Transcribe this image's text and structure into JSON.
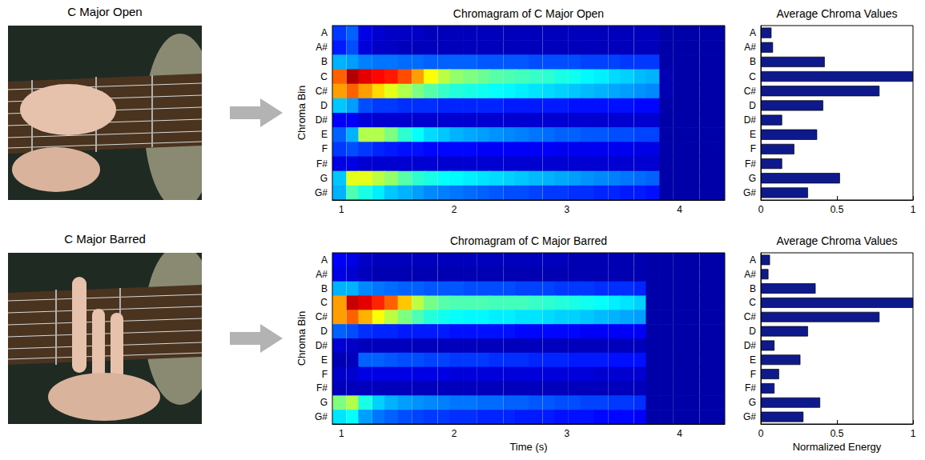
{
  "photos": [
    {
      "title": "C Major Open"
    },
    {
      "title": "C Major Barred"
    }
  ],
  "chart_data": [
    {
      "type": "heatmap",
      "title": "Chromagram of C Major Open",
      "ylabel": "Chroma Bin",
      "x": [
        0.98,
        1.1,
        1.21,
        1.33,
        1.44,
        1.56,
        1.68,
        1.79,
        1.91,
        2.02,
        2.14,
        2.26,
        2.37,
        2.49,
        2.6,
        2.72,
        2.84,
        2.95,
        3.07,
        3.18,
        3.3,
        3.42,
        3.53,
        3.65,
        3.76,
        3.88,
        4.0,
        4.11,
        4.23,
        4.34
      ],
      "categories": [
        "A",
        "A#",
        "B",
        "C",
        "C#",
        "D",
        "D#",
        "E",
        "F",
        "F#",
        "G",
        "G#"
      ],
      "xlim": [
        0.92,
        4.4
      ],
      "xticks": [
        1,
        2,
        3,
        4
      ],
      "zlim": [
        0,
        1
      ],
      "z": [
        [
          0.18,
          0.22,
          0.1,
          0.08,
          0.07,
          0.07,
          0.07,
          0.06,
          0.06,
          0.06,
          0.06,
          0.06,
          0.06,
          0.06,
          0.06,
          0.06,
          0.06,
          0.06,
          0.06,
          0.06,
          0.06,
          0.06,
          0.06,
          0.06,
          0.06,
          0.04,
          0.04,
          0.04,
          0.04,
          0.04
        ],
        [
          0.15,
          0.2,
          0.09,
          0.07,
          0.07,
          0.06,
          0.06,
          0.06,
          0.06,
          0.06,
          0.06,
          0.06,
          0.06,
          0.06,
          0.06,
          0.06,
          0.06,
          0.06,
          0.06,
          0.06,
          0.06,
          0.06,
          0.06,
          0.06,
          0.06,
          0.04,
          0.04,
          0.04,
          0.04,
          0.04
        ],
        [
          0.3,
          0.28,
          0.25,
          0.24,
          0.24,
          0.23,
          0.23,
          0.22,
          0.22,
          0.22,
          0.22,
          0.21,
          0.21,
          0.21,
          0.21,
          0.2,
          0.2,
          0.2,
          0.2,
          0.19,
          0.19,
          0.19,
          0.18,
          0.18,
          0.18,
          0.04,
          0.04,
          0.04,
          0.04,
          0.04
        ],
        [
          0.78,
          0.95,
          0.9,
          0.87,
          0.85,
          0.8,
          0.72,
          0.62,
          0.56,
          0.52,
          0.5,
          0.48,
          0.46,
          0.45,
          0.44,
          0.43,
          0.42,
          0.4,
          0.39,
          0.37,
          0.36,
          0.34,
          0.33,
          0.31,
          0.3,
          0.05,
          0.04,
          0.04,
          0.04,
          0.04
        ],
        [
          0.72,
          0.78,
          0.72,
          0.66,
          0.6,
          0.55,
          0.5,
          0.46,
          0.43,
          0.41,
          0.4,
          0.39,
          0.38,
          0.37,
          0.36,
          0.35,
          0.34,
          0.33,
          0.32,
          0.31,
          0.3,
          0.29,
          0.28,
          0.27,
          0.26,
          0.05,
          0.04,
          0.04,
          0.04,
          0.04
        ],
        [
          0.32,
          0.28,
          0.2,
          0.18,
          0.18,
          0.17,
          0.17,
          0.17,
          0.16,
          0.16,
          0.16,
          0.16,
          0.16,
          0.15,
          0.15,
          0.15,
          0.15,
          0.15,
          0.14,
          0.14,
          0.14,
          0.14,
          0.14,
          0.13,
          0.13,
          0.04,
          0.04,
          0.04,
          0.04,
          0.04
        ],
        [
          0.12,
          0.12,
          0.09,
          0.08,
          0.08,
          0.08,
          0.08,
          0.08,
          0.08,
          0.08,
          0.08,
          0.08,
          0.08,
          0.08,
          0.08,
          0.08,
          0.08,
          0.08,
          0.08,
          0.08,
          0.08,
          0.08,
          0.08,
          0.08,
          0.08,
          0.04,
          0.04,
          0.04,
          0.04,
          0.04
        ],
        [
          0.22,
          0.3,
          0.55,
          0.55,
          0.5,
          0.42,
          0.38,
          0.34,
          0.32,
          0.3,
          0.29,
          0.28,
          0.27,
          0.26,
          0.25,
          0.24,
          0.23,
          0.22,
          0.22,
          0.21,
          0.21,
          0.2,
          0.2,
          0.19,
          0.19,
          0.04,
          0.04,
          0.04,
          0.04,
          0.04
        ],
        [
          0.18,
          0.2,
          0.18,
          0.16,
          0.15,
          0.14,
          0.14,
          0.13,
          0.13,
          0.13,
          0.13,
          0.12,
          0.12,
          0.12,
          0.12,
          0.12,
          0.12,
          0.11,
          0.11,
          0.11,
          0.11,
          0.11,
          0.11,
          0.1,
          0.1,
          0.04,
          0.04,
          0.04,
          0.04,
          0.04
        ],
        [
          0.1,
          0.1,
          0.08,
          0.08,
          0.08,
          0.08,
          0.08,
          0.08,
          0.08,
          0.08,
          0.08,
          0.08,
          0.08,
          0.08,
          0.08,
          0.08,
          0.08,
          0.08,
          0.08,
          0.08,
          0.08,
          0.08,
          0.08,
          0.08,
          0.08,
          0.04,
          0.04,
          0.04,
          0.04,
          0.04
        ],
        [
          0.32,
          0.6,
          0.6,
          0.56,
          0.52,
          0.46,
          0.42,
          0.4,
          0.38,
          0.37,
          0.36,
          0.35,
          0.34,
          0.33,
          0.32,
          0.31,
          0.3,
          0.29,
          0.28,
          0.27,
          0.26,
          0.25,
          0.24,
          0.23,
          0.22,
          0.04,
          0.04,
          0.04,
          0.04,
          0.04
        ],
        [
          0.3,
          0.45,
          0.4,
          0.36,
          0.32,
          0.3,
          0.28,
          0.26,
          0.25,
          0.24,
          0.23,
          0.22,
          0.21,
          0.2,
          0.2,
          0.19,
          0.18,
          0.18,
          0.17,
          0.17,
          0.16,
          0.16,
          0.15,
          0.15,
          0.14,
          0.04,
          0.04,
          0.04,
          0.04,
          0.04
        ]
      ]
    },
    {
      "type": "bar",
      "orientation": "horizontal",
      "title": "Average Chroma Values",
      "categories": [
        "A",
        "A#",
        "B",
        "C",
        "C#",
        "D",
        "D#",
        "E",
        "F",
        "F#",
        "G",
        "G#"
      ],
      "values": [
        0.07,
        0.08,
        0.42,
        1.0,
        0.78,
        0.41,
        0.14,
        0.37,
        0.22,
        0.14,
        0.52,
        0.31
      ],
      "color": "#0e1a8c",
      "xlim": [
        0,
        1
      ],
      "xticks": [
        0,
        0.5,
        1
      ]
    },
    {
      "type": "heatmap",
      "title": "Chromagram of C Major Barred",
      "xlabel": "Time (s)",
      "ylabel": "Chroma Bin",
      "x": [
        0.98,
        1.1,
        1.21,
        1.33,
        1.44,
        1.56,
        1.68,
        1.79,
        1.91,
        2.02,
        2.14,
        2.26,
        2.37,
        2.49,
        2.6,
        2.72,
        2.84,
        2.95,
        3.07,
        3.18,
        3.3,
        3.42,
        3.53,
        3.65,
        3.76,
        3.88,
        4.0,
        4.11,
        4.23,
        4.34
      ],
      "categories": [
        "A",
        "A#",
        "B",
        "C",
        "C#",
        "D",
        "D#",
        "E",
        "F",
        "F#",
        "G",
        "G#"
      ],
      "xlim": [
        0.92,
        4.4
      ],
      "xticks": [
        1,
        2,
        3,
        4
      ],
      "zlim": [
        0,
        1
      ],
      "z": [
        [
          0.12,
          0.1,
          0.07,
          0.06,
          0.06,
          0.06,
          0.06,
          0.06,
          0.06,
          0.06,
          0.06,
          0.06,
          0.06,
          0.06,
          0.06,
          0.06,
          0.06,
          0.06,
          0.05,
          0.05,
          0.05,
          0.05,
          0.05,
          0.05,
          0.04,
          0.04,
          0.04,
          0.04,
          0.04,
          0.04
        ],
        [
          0.1,
          0.08,
          0.06,
          0.05,
          0.05,
          0.05,
          0.05,
          0.05,
          0.05,
          0.05,
          0.05,
          0.05,
          0.05,
          0.05,
          0.05,
          0.05,
          0.05,
          0.05,
          0.05,
          0.05,
          0.05,
          0.05,
          0.05,
          0.05,
          0.04,
          0.04,
          0.04,
          0.04,
          0.04,
          0.04
        ],
        [
          0.3,
          0.3,
          0.26,
          0.24,
          0.23,
          0.22,
          0.22,
          0.21,
          0.21,
          0.21,
          0.2,
          0.2,
          0.2,
          0.2,
          0.19,
          0.19,
          0.19,
          0.18,
          0.18,
          0.18,
          0.17,
          0.17,
          0.17,
          0.16,
          0.04,
          0.04,
          0.04,
          0.04,
          0.04,
          0.04
        ],
        [
          0.72,
          0.93,
          0.9,
          0.84,
          0.78,
          0.68,
          0.56,
          0.49,
          0.46,
          0.45,
          0.45,
          0.45,
          0.44,
          0.44,
          0.44,
          0.43,
          0.42,
          0.41,
          0.4,
          0.39,
          0.38,
          0.36,
          0.35,
          0.33,
          0.04,
          0.04,
          0.04,
          0.04,
          0.04,
          0.04
        ],
        [
          0.72,
          0.78,
          0.7,
          0.62,
          0.56,
          0.5,
          0.45,
          0.41,
          0.39,
          0.38,
          0.37,
          0.37,
          0.36,
          0.36,
          0.35,
          0.35,
          0.34,
          0.33,
          0.33,
          0.32,
          0.31,
          0.3,
          0.29,
          0.28,
          0.04,
          0.04,
          0.04,
          0.04,
          0.04,
          0.04
        ],
        [
          0.22,
          0.2,
          0.17,
          0.16,
          0.16,
          0.15,
          0.15,
          0.15,
          0.15,
          0.14,
          0.14,
          0.14,
          0.14,
          0.14,
          0.13,
          0.13,
          0.13,
          0.13,
          0.13,
          0.12,
          0.12,
          0.12,
          0.12,
          0.12,
          0.04,
          0.04,
          0.04,
          0.04,
          0.04,
          0.04
        ],
        [
          0.08,
          0.07,
          0.06,
          0.06,
          0.06,
          0.06,
          0.06,
          0.06,
          0.06,
          0.06,
          0.06,
          0.06,
          0.06,
          0.06,
          0.06,
          0.06,
          0.06,
          0.06,
          0.06,
          0.06,
          0.06,
          0.06,
          0.06,
          0.06,
          0.04,
          0.04,
          0.04,
          0.04,
          0.04,
          0.04
        ],
        [
          0.05,
          0.06,
          0.22,
          0.22,
          0.21,
          0.2,
          0.2,
          0.19,
          0.19,
          0.18,
          0.18,
          0.18,
          0.17,
          0.17,
          0.17,
          0.16,
          0.16,
          0.16,
          0.15,
          0.15,
          0.15,
          0.14,
          0.14,
          0.14,
          0.04,
          0.04,
          0.04,
          0.04,
          0.04,
          0.04
        ],
        [
          0.07,
          0.08,
          0.1,
          0.1,
          0.1,
          0.1,
          0.1,
          0.1,
          0.1,
          0.09,
          0.09,
          0.09,
          0.09,
          0.09,
          0.09,
          0.09,
          0.09,
          0.09,
          0.09,
          0.09,
          0.08,
          0.08,
          0.08,
          0.08,
          0.04,
          0.04,
          0.04,
          0.04,
          0.04,
          0.04
        ],
        [
          0.06,
          0.06,
          0.06,
          0.06,
          0.06,
          0.06,
          0.06,
          0.06,
          0.06,
          0.06,
          0.06,
          0.06,
          0.06,
          0.06,
          0.06,
          0.06,
          0.06,
          0.06,
          0.06,
          0.06,
          0.06,
          0.06,
          0.06,
          0.06,
          0.04,
          0.04,
          0.04,
          0.04,
          0.04,
          0.04
        ],
        [
          0.5,
          0.55,
          0.4,
          0.33,
          0.3,
          0.28,
          0.27,
          0.26,
          0.25,
          0.24,
          0.24,
          0.23,
          0.23,
          0.22,
          0.22,
          0.21,
          0.21,
          0.2,
          0.2,
          0.19,
          0.19,
          0.18,
          0.18,
          0.17,
          0.04,
          0.04,
          0.04,
          0.04,
          0.04,
          0.04
        ],
        [
          0.35,
          0.38,
          0.28,
          0.24,
          0.22,
          0.2,
          0.19,
          0.18,
          0.18,
          0.17,
          0.17,
          0.16,
          0.16,
          0.16,
          0.15,
          0.15,
          0.15,
          0.14,
          0.14,
          0.14,
          0.13,
          0.13,
          0.13,
          0.12,
          0.04,
          0.04,
          0.04,
          0.04,
          0.04,
          0.04
        ]
      ]
    },
    {
      "type": "bar",
      "orientation": "horizontal",
      "title": "Average Chroma Values",
      "xlabel": "Normalized Energy",
      "categories": [
        "A",
        "A#",
        "B",
        "C",
        "C#",
        "D",
        "D#",
        "E",
        "F",
        "F#",
        "G",
        "G#"
      ],
      "values": [
        0.06,
        0.05,
        0.36,
        1.0,
        0.78,
        0.31,
        0.09,
        0.26,
        0.12,
        0.09,
        0.39,
        0.28
      ],
      "color": "#0e1a8c",
      "xlim": [
        0,
        1
      ],
      "xticks": [
        0,
        0.5,
        1
      ]
    }
  ]
}
